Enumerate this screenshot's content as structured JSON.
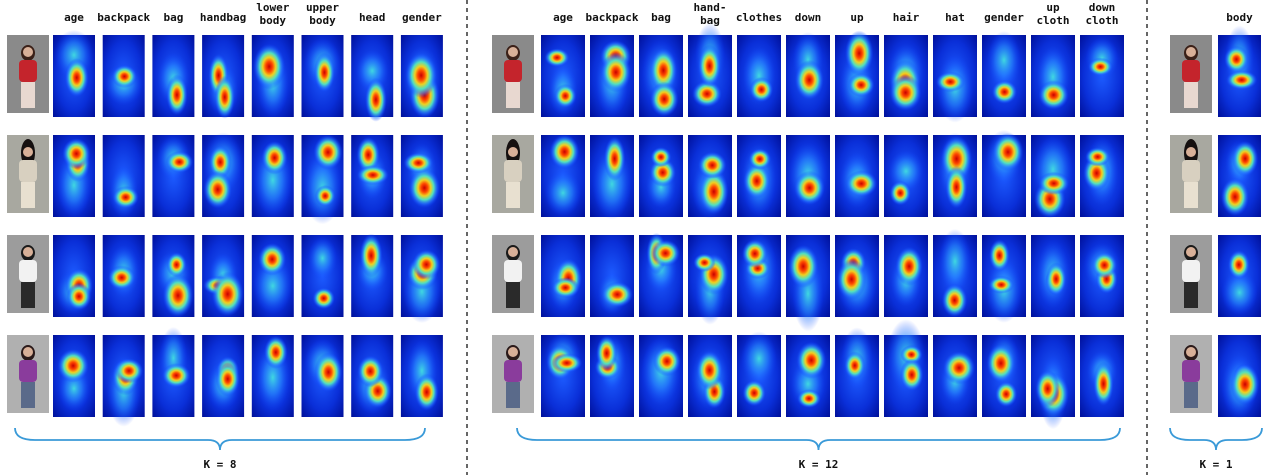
{
  "panels": [
    {
      "columns": [
        [
          "age"
        ],
        [
          "backpack"
        ],
        [
          "bag"
        ],
        [
          "handbag"
        ],
        [
          "lower",
          "body"
        ],
        [
          "upper",
          "body"
        ],
        [
          "head"
        ],
        [
          "gender"
        ]
      ],
      "caption": "K = 8"
    },
    {
      "columns": [
        [
          "age"
        ],
        [
          "backpack"
        ],
        [
          "bag"
        ],
        [
          "hand-",
          "bag"
        ],
        [
          "clothes"
        ],
        [
          "down"
        ],
        [
          "up"
        ],
        [
          "hair"
        ],
        [
          "hat"
        ],
        [
          "gender"
        ],
        [
          "up",
          "cloth"
        ],
        [
          "down",
          "cloth"
        ]
      ],
      "caption": "K = 12"
    },
    {
      "columns": [
        [
          "body"
        ]
      ],
      "caption": "K = 1"
    }
  ]
}
